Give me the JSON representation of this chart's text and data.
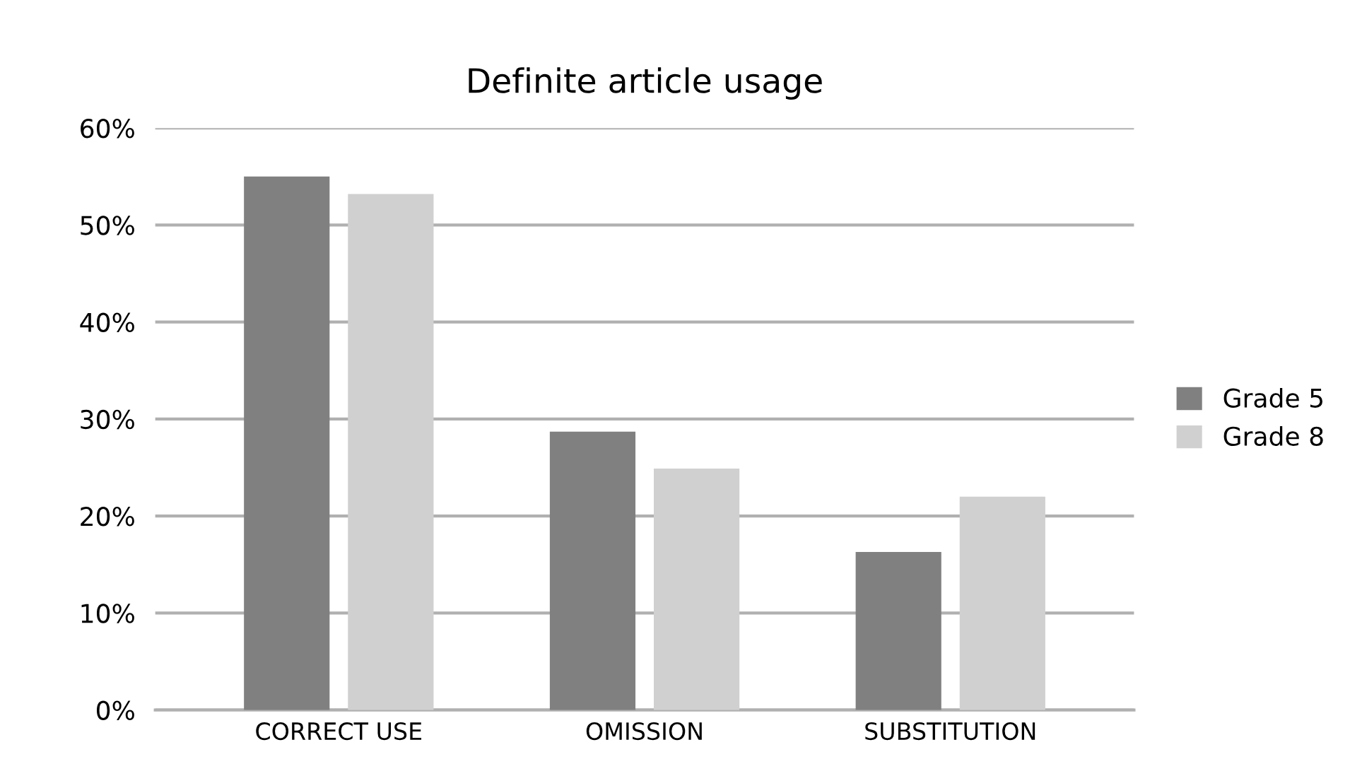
{
  "chart_data": {
    "type": "bar",
    "title": "Definite article usage",
    "categories": [
      "CORRECT USE",
      "OMISSION",
      "SUBSTITUTION"
    ],
    "series": [
      {
        "name": "Grade 5",
        "color": "#808080",
        "values": [
          55,
          28.7,
          16.3
        ]
      },
      {
        "name": "Grade 8",
        "color": "#d0d0d0",
        "values": [
          53.2,
          24.9,
          22
        ]
      }
    ],
    "ylim": [
      0,
      60
    ],
    "yticks": [
      {
        "value": 0,
        "label": "0%"
      },
      {
        "value": 10,
        "label": "10%"
      },
      {
        "value": 20,
        "label": "20%"
      },
      {
        "value": 30,
        "label": "30%"
      },
      {
        "value": 40,
        "label": "40%"
      },
      {
        "value": 50,
        "label": "50%"
      },
      {
        "value": 60,
        "label": "60%"
      }
    ],
    "grid": "y",
    "legend": "right"
  }
}
